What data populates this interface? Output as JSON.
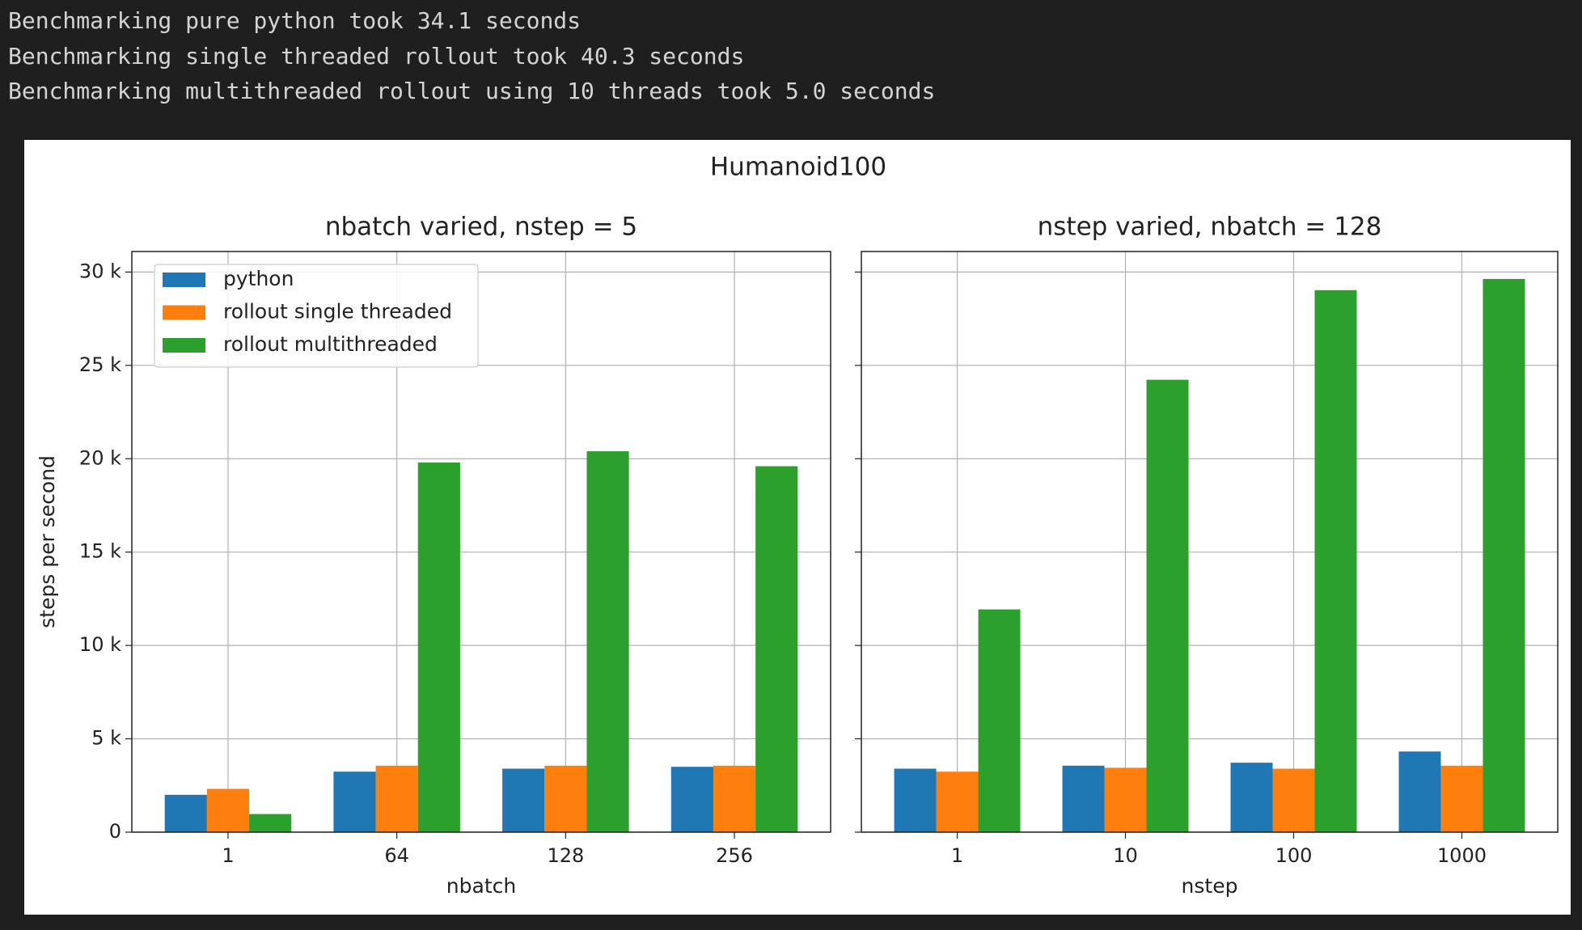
{
  "console": {
    "lines": [
      "Benchmarking pure python took 34.1 seconds",
      "Benchmarking single threaded rollout took 40.3 seconds",
      "Benchmarking multithreaded rollout using 10 threads took 5.0 seconds"
    ]
  },
  "suptitle": "Humanoid100",
  "chart_data": [
    {
      "type": "bar",
      "title": "nbatch varied, nstep = 5",
      "x_label": "nbatch",
      "y_label": "steps per second",
      "categories": [
        "1",
        "64",
        "128",
        "256"
      ],
      "series": [
        {
          "name": "python",
          "color": "#1f77b4",
          "values": [
            2000,
            3240,
            3400,
            3500
          ]
        },
        {
          "name": "rollout single threaded",
          "color": "#ff7f0e",
          "values": [
            2320,
            3560,
            3560,
            3560
          ]
        },
        {
          "name": "rollout multithreaded",
          "color": "#2ca02c",
          "values": [
            970,
            19800,
            20400,
            19600
          ]
        }
      ],
      "ylim": [
        0,
        31100
      ],
      "yticks": [
        0,
        {
          "value": 5000,
          "label": "5 k"
        },
        {
          "value": 10000,
          "label": "10 k"
        },
        {
          "value": 15000,
          "label": "15 k"
        },
        {
          "value": 20000,
          "label": "20 k"
        },
        {
          "value": 25000,
          "label": "25 k"
        },
        {
          "value": 30000,
          "label": "30 k"
        }
      ],
      "grid": true,
      "legend": "upper left"
    },
    {
      "type": "bar",
      "title": "nstep varied, nbatch = 128",
      "x_label": "nstep",
      "categories": [
        "1",
        "10",
        "100",
        "1000"
      ],
      "series": [
        {
          "color": "#1f77b4",
          "values": [
            3400,
            3560,
            3720,
            4320
          ]
        },
        {
          "color": "#ff7f0e",
          "values": [
            3240,
            3450,
            3400,
            3560
          ]
        },
        {
          "color": "#2ca02c",
          "values": [
            11930,
            24230,
            29030,
            29630
          ]
        }
      ],
      "ylim": [
        0,
        31100
      ],
      "yticks": [
        0,
        5000,
        10000,
        15000,
        20000,
        25000,
        30000
      ],
      "grid": true
    }
  ]
}
